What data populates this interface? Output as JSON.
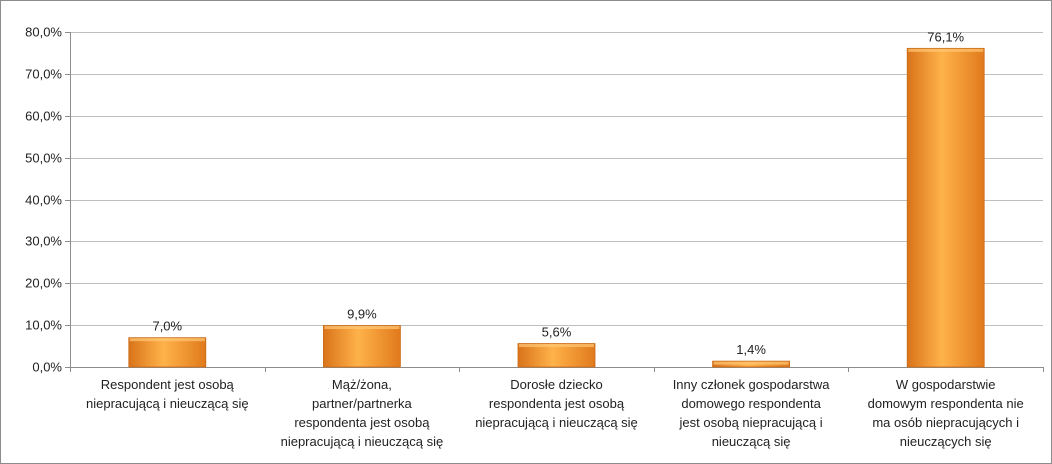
{
  "chart_data": {
    "type": "bar",
    "categories": [
      [
        "Respondent jest osobą",
        "niepracującą i nieuczącą się"
      ],
      [
        "Mąż/żona,",
        "partner/partnerka",
        "respondenta jest osobą",
        "niepracującą i nieuczącą się"
      ],
      [
        "Dorosłe dziecko",
        "respondenta jest osobą",
        "niepracującą i nieuczącą się"
      ],
      [
        "Inny członek gospodarstwa",
        "domowego respondenta",
        "jest osobą niepracującą i",
        "nieuczącą się"
      ],
      [
        "W gospodarstwie",
        "domowym respondenta nie",
        "ma osób niepracujących i",
        "nieuczących się"
      ]
    ],
    "values": [
      7.0,
      9.9,
      5.6,
      1.4,
      76.1
    ],
    "data_labels": [
      "7,0%",
      "9,9%",
      "5,6%",
      "1,4%",
      "76,1%"
    ],
    "y_ticks": [
      "0,0%",
      "10,0%",
      "20,0%",
      "30,0%",
      "40,0%",
      "50,0%",
      "60,0%",
      "70,0%",
      "80,0%"
    ],
    "ylim": [
      0,
      80
    ],
    "grid": true,
    "legend": "none",
    "colors": {
      "bar": "#f28c1e",
      "bar_light": "#ffb24a",
      "bar_dark": "#d9731a",
      "grid": "#bfbfbf",
      "axis": "#8c8c8c"
    }
  }
}
